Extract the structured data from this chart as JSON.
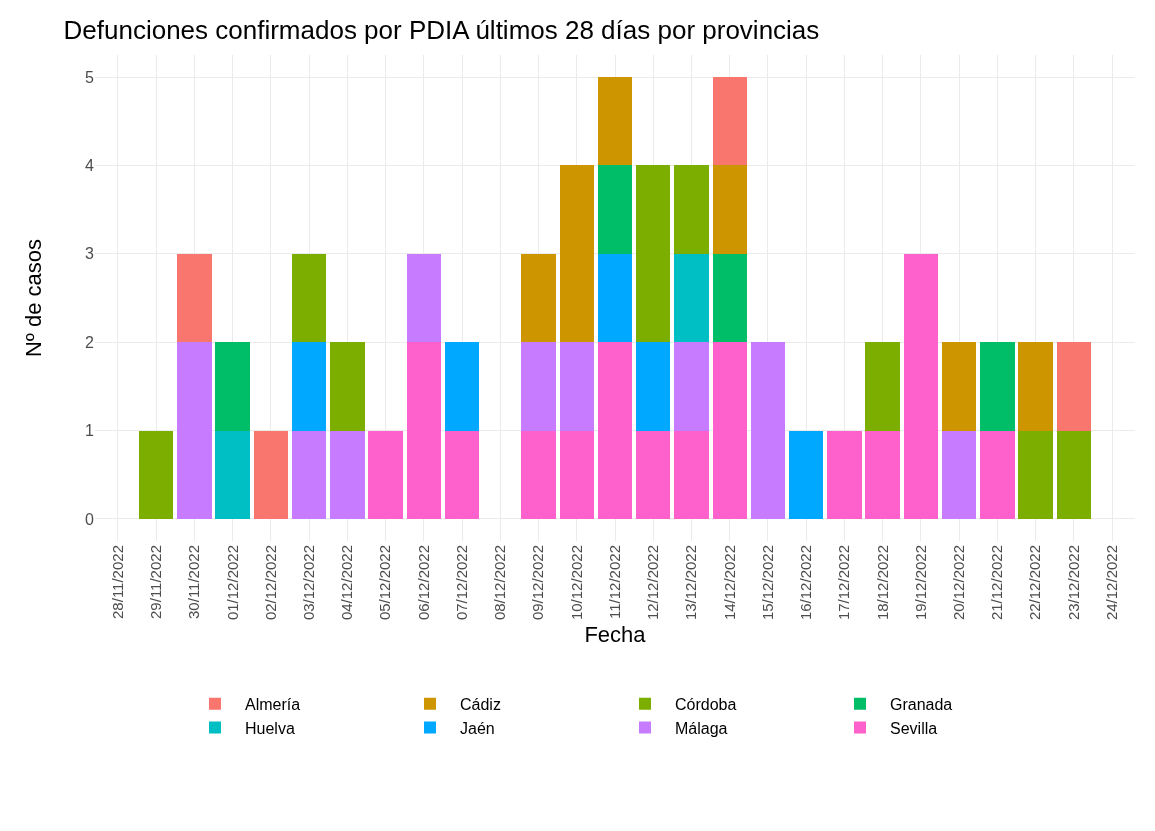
{
  "chart_data": {
    "type": "bar",
    "title": "Defunciones confirmados por PDIA últimos 28 días por provincias",
    "xlabel": "Fecha",
    "ylabel": "Nº de casos",
    "categories": [
      "28/11/2022",
      "29/11/2022",
      "30/11/2022",
      "01/12/2022",
      "02/12/2022",
      "03/12/2022",
      "04/12/2022",
      "05/12/2022",
      "06/12/2022",
      "07/12/2022",
      "08/12/2022",
      "09/12/2022",
      "10/12/2022",
      "11/12/2022",
      "12/12/2022",
      "13/12/2022",
      "14/12/2022",
      "15/12/2022",
      "16/12/2022",
      "17/12/2022",
      "18/12/2022",
      "19/12/2022",
      "20/12/2022",
      "21/12/2022",
      "22/12/2022",
      "23/12/2022",
      "24/12/2022"
    ],
    "stacked": true,
    "ylim": [
      -0.25,
      5.25
    ],
    "yticks": [
      0,
      1,
      2,
      3,
      4,
      5
    ],
    "grid": true,
    "legend": "bottom",
    "series": [
      {
        "name": "Sevilla",
        "color": "#ff61cc",
        "values": [
          null,
          null,
          null,
          null,
          null,
          null,
          null,
          1,
          2,
          1,
          null,
          1,
          1,
          2,
          1,
          1,
          2,
          null,
          null,
          1,
          1,
          3,
          null,
          1,
          null,
          null,
          null
        ]
      },
      {
        "name": "Málaga",
        "color": "#c77cff",
        "values": [
          null,
          null,
          2,
          null,
          null,
          1,
          1,
          null,
          1,
          null,
          null,
          1,
          1,
          null,
          null,
          1,
          null,
          2,
          null,
          null,
          null,
          null,
          1,
          null,
          null,
          null,
          null
        ]
      },
      {
        "name": "Jaén",
        "color": "#00a9ff",
        "values": [
          null,
          null,
          null,
          null,
          null,
          1,
          null,
          null,
          null,
          1,
          null,
          null,
          null,
          1,
          1,
          null,
          null,
          null,
          1,
          null,
          null,
          null,
          null,
          null,
          null,
          null,
          null
        ]
      },
      {
        "name": "Huelva",
        "color": "#00bfc4",
        "values": [
          null,
          null,
          null,
          1,
          null,
          null,
          null,
          null,
          null,
          null,
          null,
          null,
          null,
          null,
          null,
          1,
          null,
          null,
          null,
          null,
          null,
          null,
          null,
          null,
          null,
          null,
          null
        ]
      },
      {
        "name": "Granada",
        "color": "#00be67",
        "values": [
          null,
          null,
          null,
          1,
          null,
          null,
          null,
          null,
          null,
          null,
          null,
          null,
          null,
          1,
          null,
          null,
          1,
          null,
          null,
          null,
          null,
          null,
          null,
          1,
          null,
          null,
          null
        ]
      },
      {
        "name": "Córdoba",
        "color": "#7cae00",
        "values": [
          null,
          1,
          null,
          null,
          null,
          1,
          1,
          null,
          null,
          null,
          null,
          null,
          null,
          null,
          2,
          1,
          null,
          null,
          null,
          null,
          1,
          null,
          null,
          null,
          1,
          1,
          null
        ]
      },
      {
        "name": "Cádiz",
        "color": "#cd9600",
        "values": [
          null,
          null,
          null,
          null,
          null,
          null,
          null,
          null,
          null,
          null,
          null,
          1,
          2,
          1,
          null,
          null,
          1,
          null,
          null,
          null,
          null,
          null,
          1,
          null,
          1,
          null,
          null
        ]
      },
      {
        "name": "Almería",
        "color": "#f8766d",
        "values": [
          null,
          null,
          1,
          null,
          1,
          null,
          null,
          null,
          null,
          null,
          null,
          null,
          null,
          null,
          null,
          null,
          1,
          null,
          null,
          null,
          null,
          null,
          null,
          null,
          null,
          1,
          null
        ]
      }
    ]
  }
}
